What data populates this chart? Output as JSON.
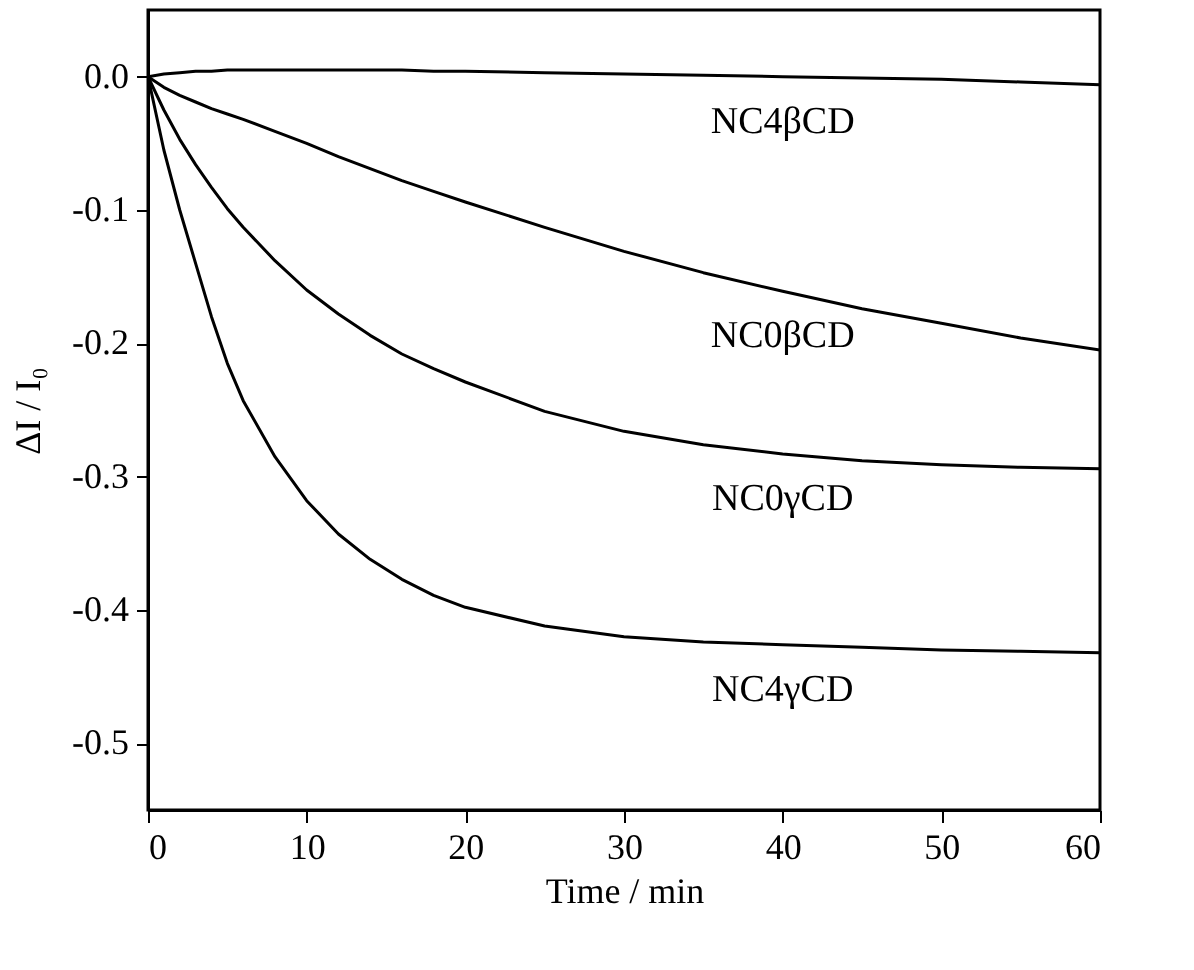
{
  "chart_data": {
    "type": "line",
    "xlabel": "Time / min",
    "ylabel": "ΔI / I₀",
    "xlim": [
      0,
      60
    ],
    "ylim": [
      -0.55,
      0.05
    ],
    "xticks": [
      0,
      10,
      20,
      30,
      40,
      50,
      60
    ],
    "yticks": [
      {
        "value": 0,
        "label": "0.0"
      },
      {
        "value": -0.1,
        "label": "-0.1"
      },
      {
        "value": -0.2,
        "label": "-0.2"
      },
      {
        "value": -0.3,
        "label": "-0.3"
      },
      {
        "value": -0.4,
        "label": "-0.4"
      },
      {
        "value": -0.5,
        "label": "-0.5"
      }
    ],
    "grid": false,
    "marker": "none",
    "line_style": "solid",
    "x": [
      0,
      1,
      2,
      3,
      4,
      5,
      6,
      8,
      10,
      12,
      14,
      16,
      18,
      20,
      25,
      30,
      35,
      40,
      45,
      50,
      55,
      60
    ],
    "series": [
      {
        "name": "NC4βCD",
        "color": "#000000",
        "values": [
          0,
          0.002,
          0.003,
          0.004,
          0.004,
          0.005,
          0.005,
          0.005,
          0.005,
          0.005,
          0.005,
          0.005,
          0.004,
          0.004,
          0.003,
          0.002,
          0.001,
          0,
          -0.001,
          -0.002,
          -0.004,
          -0.006
        ]
      },
      {
        "name": "NC0βCD",
        "color": "#000000",
        "values": [
          0,
          -0.008,
          -0.014,
          -0.019,
          -0.024,
          -0.028,
          -0.032,
          -0.041,
          -0.05,
          -0.06,
          -0.069,
          -0.078,
          -0.086,
          -0.094,
          -0.113,
          -0.131,
          -0.147,
          -0.161,
          -0.174,
          -0.185,
          -0.196,
          -0.205
        ]
      },
      {
        "name": "NC0γCD",
        "color": "#000000",
        "values": [
          0,
          -0.025,
          -0.047,
          -0.066,
          -0.083,
          -0.099,
          -0.113,
          -0.138,
          -0.16,
          -0.178,
          -0.194,
          -0.208,
          -0.219,
          -0.229,
          -0.251,
          -0.266,
          -0.276,
          -0.283,
          -0.288,
          -0.291,
          -0.293,
          -0.294
        ]
      },
      {
        "name": "NC4γCD",
        "color": "#000000",
        "values": [
          0,
          -0.055,
          -0.1,
          -0.14,
          -0.18,
          -0.215,
          -0.243,
          -0.285,
          -0.318,
          -0.343,
          -0.362,
          -0.377,
          -0.389,
          -0.398,
          -0.412,
          -0.42,
          -0.424,
          -0.426,
          -0.428,
          -0.43,
          -0.431,
          -0.432
        ]
      }
    ]
  }
}
